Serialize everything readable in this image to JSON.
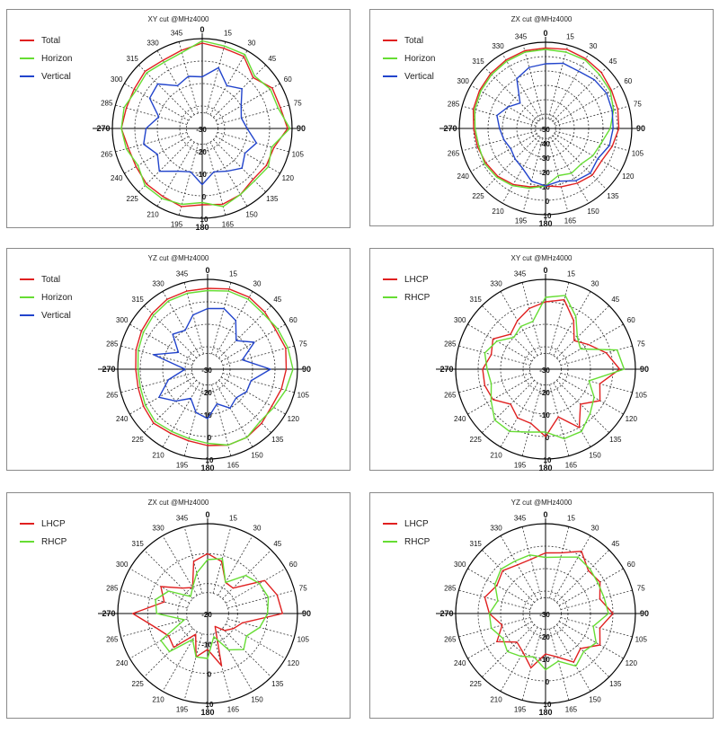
{
  "chart_data": [
    {
      "type": "line",
      "title": "XY cut @MHz4000",
      "angle_labels": [
        "0",
        "15",
        "30",
        "45",
        "60",
        "75",
        "90",
        "105",
        "120",
        "135",
        "150",
        "165",
        "180",
        "195",
        "210",
        "225",
        "240",
        "265",
        "270",
        "285",
        "300",
        "315",
        "330",
        "345"
      ],
      "radial_labels": [
        "-30",
        "-20",
        "-10",
        "0",
        "10"
      ],
      "radial_range": [
        -30,
        10
      ],
      "series": [
        {
          "name": "Total",
          "color": "#e02020",
          "values": [
            8,
            7,
            7,
            2,
            6,
            6,
            8,
            3,
            3,
            2,
            4,
            5,
            4,
            6,
            5,
            5,
            4,
            4,
            6,
            5,
            5,
            6,
            5,
            6
          ]
        },
        {
          "name": "Horizon",
          "color": "#66dd33",
          "values": [
            9,
            8,
            8,
            3,
            5,
            5,
            9,
            2,
            4,
            3,
            4,
            6,
            3,
            5,
            6,
            6,
            3,
            5,
            6,
            6,
            4,
            5,
            4,
            5
          ]
        },
        {
          "name": "Vertical",
          "color": "#2244cc",
          "values": [
            -7,
            -2,
            -8,
            -5,
            -10,
            -12,
            -10,
            -5,
            -8,
            -5,
            -8,
            -10,
            -5,
            -10,
            -8,
            -3,
            -7,
            -3,
            -5,
            -10,
            -3,
            -2,
            -8,
            -6
          ]
        }
      ]
    },
    {
      "type": "line",
      "title": "ZX cut @MHz4000",
      "angle_labels": [
        "0",
        "15",
        "30",
        "45",
        "60",
        "75",
        "90",
        "105",
        "120",
        "135",
        "150",
        "165",
        "180",
        "195",
        "210",
        "225",
        "240",
        "265",
        "270",
        "285",
        "300",
        "315",
        "330",
        "345"
      ],
      "radial_labels": [
        "-50",
        "-40",
        "-30",
        "-20",
        "-10",
        "0",
        "10"
      ],
      "radial_range": [
        -50,
        10
      ],
      "series": [
        {
          "name": "Total",
          "color": "#e02020",
          "values": [
            6,
            7,
            6,
            5,
            3,
            2,
            1,
            -2,
            -5,
            -4,
            -6,
            -8,
            -10,
            -8,
            -5,
            -3,
            -2,
            -1,
            0,
            2,
            3,
            4,
            5,
            6
          ]
        },
        {
          "name": "Horizon",
          "color": "#66dd33",
          "values": [
            5,
            5,
            5,
            3,
            2,
            -1,
            -5,
            -10,
            -12,
            -15,
            -14,
            -16,
            -10,
            -7,
            -4,
            -2,
            -1,
            -2,
            -1,
            1,
            2,
            3,
            4,
            5
          ]
        },
        {
          "name": "Vertical",
          "color": "#2244cc",
          "values": [
            -5,
            -3,
            -4,
            -2,
            -1,
            -2,
            -3,
            -4,
            -8,
            -6,
            -8,
            -12,
            -10,
            -12,
            -18,
            -20,
            -22,
            -20,
            -18,
            -15,
            -20,
            -25,
            -10,
            -6
          ]
        }
      ]
    },
    {
      "type": "line",
      "title": "YZ cut @MHz4000",
      "angle_labels": [
        "0",
        "15",
        "30",
        "45",
        "60",
        "75",
        "90",
        "105",
        "120",
        "135",
        "150",
        "165",
        "180",
        "195",
        "210",
        "225",
        "240",
        "265",
        "270",
        "285",
        "300",
        "315",
        "330",
        "345"
      ],
      "radial_labels": [
        "-30",
        "-20",
        "-10",
        "0",
        "10"
      ],
      "radial_range": [
        -30,
        10
      ],
      "series": [
        {
          "name": "Total",
          "color": "#e02020",
          "values": [
            6,
            7,
            7,
            6,
            5,
            6,
            5,
            4,
            3,
            4,
            5,
            5,
            4,
            3,
            3,
            4,
            3,
            2,
            2,
            3,
            4,
            5,
            6,
            6
          ]
        },
        {
          "name": "Horizon",
          "color": "#66dd33",
          "values": [
            5,
            6,
            6,
            5,
            6,
            7,
            8,
            6,
            4,
            3,
            5,
            5,
            3,
            2,
            2,
            3,
            2,
            1,
            1,
            2,
            3,
            4,
            5,
            5
          ]
        },
        {
          "name": "Vertical",
          "color": "#2244cc",
          "values": [
            -3,
            -2,
            -5,
            -12,
            -6,
            -14,
            -2,
            -10,
            -10,
            -12,
            -10,
            -14,
            -8,
            -10,
            -15,
            -10,
            -5,
            -12,
            -20,
            -5,
            -15,
            -8,
            -10,
            -5
          ]
        }
      ]
    },
    {
      "type": "line",
      "title": "XY cut @MHz4000",
      "angle_labels": [
        "0",
        "15",
        "30",
        "45",
        "60",
        "75",
        "90",
        "105",
        "120",
        "135",
        "150",
        "165",
        "180",
        "195",
        "210",
        "225",
        "240",
        "265",
        "270",
        "285",
        "300",
        "315",
        "330",
        "345"
      ],
      "radial_labels": [
        "-30",
        "-20",
        "-10",
        "0",
        "10"
      ],
      "radial_range": [
        -30,
        10
      ],
      "series": [
        {
          "name": "LHCP",
          "color": "#e02020",
          "values": [
            0,
            2,
            -5,
            -12,
            -8,
            -2,
            3,
            -5,
            -2,
            -8,
            0,
            -8,
            0,
            -5,
            -5,
            -8,
            -3,
            -2,
            -2,
            -5,
            -3,
            -8,
            -5,
            -2
          ]
        },
        {
          "name": "RHCP",
          "color": "#66dd33",
          "values": [
            2,
            4,
            -3,
            -10,
            -12,
            3,
            5,
            -10,
            -5,
            -2,
            2,
            2,
            -2,
            -1,
            2,
            2,
            -2,
            -5,
            -4,
            -2,
            -5,
            -10,
            -8,
            -8
          ]
        }
      ]
    },
    {
      "type": "line",
      "title": "ZX cut @MHz4000",
      "angle_labels": [
        "0",
        "15",
        "30",
        "45",
        "60",
        "75",
        "90",
        "105",
        "120",
        "135",
        "150",
        "165",
        "180",
        "195",
        "210",
        "225",
        "240",
        "265",
        "270",
        "285",
        "300",
        "315",
        "330",
        "345"
      ],
      "radial_labels": [
        "-20",
        "-10",
        "0",
        "10"
      ],
      "radial_range": [
        -20,
        10
      ],
      "series": [
        {
          "name": "LHCP",
          "color": "#e02020",
          "values": [
            0,
            -2,
            -8,
            -8,
            2,
            4,
            5,
            -8,
            -10,
            -12,
            -15,
            -2,
            -8,
            -5,
            -12,
            -4,
            -5,
            -2,
            5,
            -5,
            -2,
            -8,
            -10,
            -2
          ]
        },
        {
          "name": "RHCP",
          "color": "#66dd33",
          "values": [
            -2,
            -1,
            -8,
            -2,
            0,
            1,
            0,
            -2,
            -5,
            -3,
            -6,
            -12,
            -5,
            -5,
            -10,
            -2,
            -2,
            -12,
            -3,
            -2,
            -5,
            -12,
            -10,
            -6
          ]
        }
      ]
    },
    {
      "type": "line",
      "title": "YZ cut @MHz4000",
      "angle_labels": [
        "0",
        "15",
        "30",
        "45",
        "60",
        "75",
        "90",
        "105",
        "120",
        "135",
        "150",
        "165",
        "180",
        "195",
        "210",
        "225",
        "240",
        "265",
        "270",
        "285",
        "300",
        "315",
        "330",
        "345"
      ],
      "radial_labels": [
        "-30",
        "-20",
        "-10",
        "0",
        "10"
      ],
      "radial_range": [
        -30,
        10
      ],
      "series": [
        {
          "name": "LHCP",
          "color": "#e02020",
          "values": [
            -3,
            -2,
            2,
            -3,
            -2,
            -5,
            0,
            -5,
            -2,
            -8,
            -5,
            -10,
            -12,
            -5,
            -10,
            -12,
            -5,
            -10,
            -5,
            -2,
            -5,
            -3,
            -5,
            -5
          ]
        },
        {
          "name": "RHCP",
          "color": "#66dd33",
          "values": [
            -5,
            -4,
            -1,
            -2,
            -3,
            -3,
            -2,
            -8,
            -4,
            -6,
            -3,
            -8,
            -5,
            -10,
            -8,
            -6,
            -8,
            -5,
            -5,
            -8,
            -4,
            -2,
            -3,
            -3
          ]
        }
      ]
    }
  ]
}
